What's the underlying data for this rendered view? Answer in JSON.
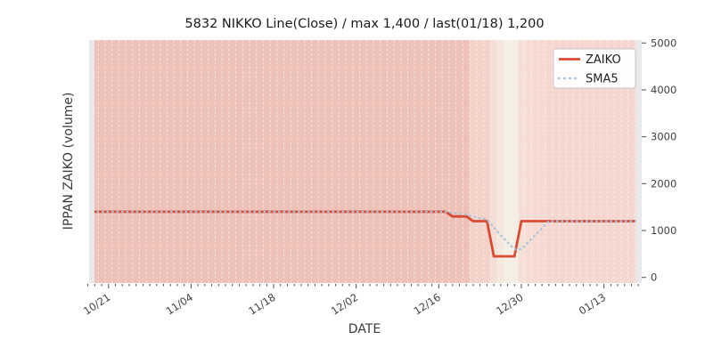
{
  "title": "5832 NIKKO Line(Close) / max 1,400 / last(01/18) 1,200",
  "axes": {
    "x_label": "DATE",
    "y_label": "IPPAN ZAIKO (volume)",
    "y_ticks": [
      0,
      1000,
      2000,
      3000,
      4000,
      5000
    ],
    "x_tick_labels": [
      "10/21",
      "11/04",
      "11/18",
      "12/02",
      "12/16",
      "12/30",
      "01/13"
    ],
    "x_tick_indices": [
      3,
      15,
      27,
      39,
      51,
      63,
      75
    ]
  },
  "legend": {
    "items": [
      {
        "label": "ZAIKO",
        "color": "#d94a32",
        "style": "solid"
      },
      {
        "label": "SMA5",
        "color": "#a6c3df",
        "style": "dotted"
      }
    ]
  },
  "colors": {
    "zaiko_line": "#d94a32",
    "sma5_line": "#a6c3df",
    "plot_bg": "#e9e9eb",
    "grid_dash": "rgba(255,255,255,0.60)",
    "tick": "#4d4d4d",
    "tick_label": "#404040",
    "title_text": "#1a1a1a",
    "axis_label_text": "#3a3a3a",
    "legend_border": "#c8c8c8"
  },
  "chart_data": {
    "type": "line",
    "title": "5832 NIKKO Line(Close) / max 1,400 / last(01/18) 1,200",
    "xlabel": "DATE",
    "ylabel": "IPPAN ZAIKO (volume)",
    "ylim": [
      0,
      5000
    ],
    "grid": "vertical-dashed-white",
    "legend_position": "upper right",
    "x": [
      "10/17",
      "10/18",
      "10/19",
      "10/21",
      "10/22",
      "10/23",
      "10/24",
      "10/25",
      "10/26",
      "10/28",
      "10/29",
      "10/30",
      "10/31",
      "11/01",
      "11/02",
      "11/04",
      "11/05",
      "11/06",
      "11/07",
      "11/08",
      "11/09",
      "11/11",
      "11/12",
      "11/13",
      "11/14",
      "11/15",
      "11/16",
      "11/18",
      "11/19",
      "11/20",
      "11/21",
      "11/22",
      "11/23",
      "11/25",
      "11/26",
      "11/27",
      "11/28",
      "11/29",
      "11/30",
      "12/02",
      "12/03",
      "12/04",
      "12/05",
      "12/06",
      "12/07",
      "12/09",
      "12/10",
      "12/11",
      "12/12",
      "12/13",
      "12/14",
      "12/16",
      "12/17",
      "12/18",
      "12/19",
      "12/20",
      "12/21",
      "12/23",
      "12/24",
      "12/25",
      "12/26",
      "12/27",
      "12/28",
      "12/30",
      "12/31",
      "01/01",
      "01/02",
      "01/03",
      "01/04",
      "01/06",
      "01/07",
      "01/08",
      "01/09",
      "01/10",
      "01/11",
      "01/13",
      "01/14",
      "01/15",
      "01/16",
      "01/17",
      "01/18"
    ],
    "series": [
      {
        "name": "ZAIKO",
        "values": [
          1400,
          1400,
          1400,
          1400,
          1400,
          1400,
          1400,
          1400,
          1400,
          1400,
          1400,
          1400,
          1400,
          1400,
          1400,
          1400,
          1400,
          1400,
          1400,
          1400,
          1400,
          1400,
          1400,
          1400,
          1400,
          1400,
          1400,
          1400,
          1400,
          1400,
          1400,
          1400,
          1400,
          1400,
          1400,
          1400,
          1400,
          1400,
          1400,
          1400,
          1400,
          1400,
          1400,
          1400,
          1400,
          1400,
          1400,
          1400,
          1400,
          1400,
          1400,
          1400,
          1400,
          1300,
          1300,
          1300,
          1200,
          1200,
          1200,
          450,
          450,
          450,
          450,
          1200,
          1200,
          1200,
          1200,
          1200,
          1200,
          1200,
          1200,
          1200,
          1200,
          1200,
          1200,
          1200,
          1200,
          1200,
          1200,
          1200,
          1200
        ]
      },
      {
        "name": "SMA5",
        "values": [
          1400,
          1400,
          1400,
          1400,
          1400,
          1400,
          1400,
          1400,
          1400,
          1400,
          1400,
          1400,
          1400,
          1400,
          1400,
          1400,
          1400,
          1400,
          1400,
          1400,
          1400,
          1400,
          1400,
          1400,
          1400,
          1400,
          1400,
          1400,
          1400,
          1400,
          1400,
          1400,
          1400,
          1400,
          1400,
          1400,
          1400,
          1400,
          1400,
          1400,
          1400,
          1400,
          1400,
          1400,
          1400,
          1400,
          1400,
          1400,
          1400,
          1400,
          1400,
          1400,
          1400,
          1380,
          1360,
          1340,
          1300,
          1260,
          1240,
          1070,
          900,
          750,
          600,
          600,
          750,
          900,
          1050,
          1200,
          1200,
          1200,
          1200,
          1200,
          1200,
          1200,
          1200,
          1200,
          1200,
          1200,
          1200,
          1200,
          1200
        ]
      }
    ],
    "background_bands": [
      {
        "from": 0,
        "to": 55,
        "color": "#efc2b9"
      },
      {
        "from": 56,
        "to": 58,
        "color": "#f3d2c9"
      },
      {
        "from": 59,
        "to": 59,
        "color": "#f2ded4"
      },
      {
        "from": 60,
        "to": 60,
        "color": "#f4e7dc"
      },
      {
        "from": 61,
        "to": 62,
        "color": "#f5eee4"
      },
      {
        "from": 63,
        "to": 63,
        "color": "#f5e0d6"
      },
      {
        "from": 64,
        "to": 64,
        "color": "#f6dcd3"
      },
      {
        "from": 65,
        "to": 66,
        "color": "#f6dad1"
      },
      {
        "from": 67,
        "to": 80,
        "color": "#f6d7cf"
      }
    ]
  }
}
